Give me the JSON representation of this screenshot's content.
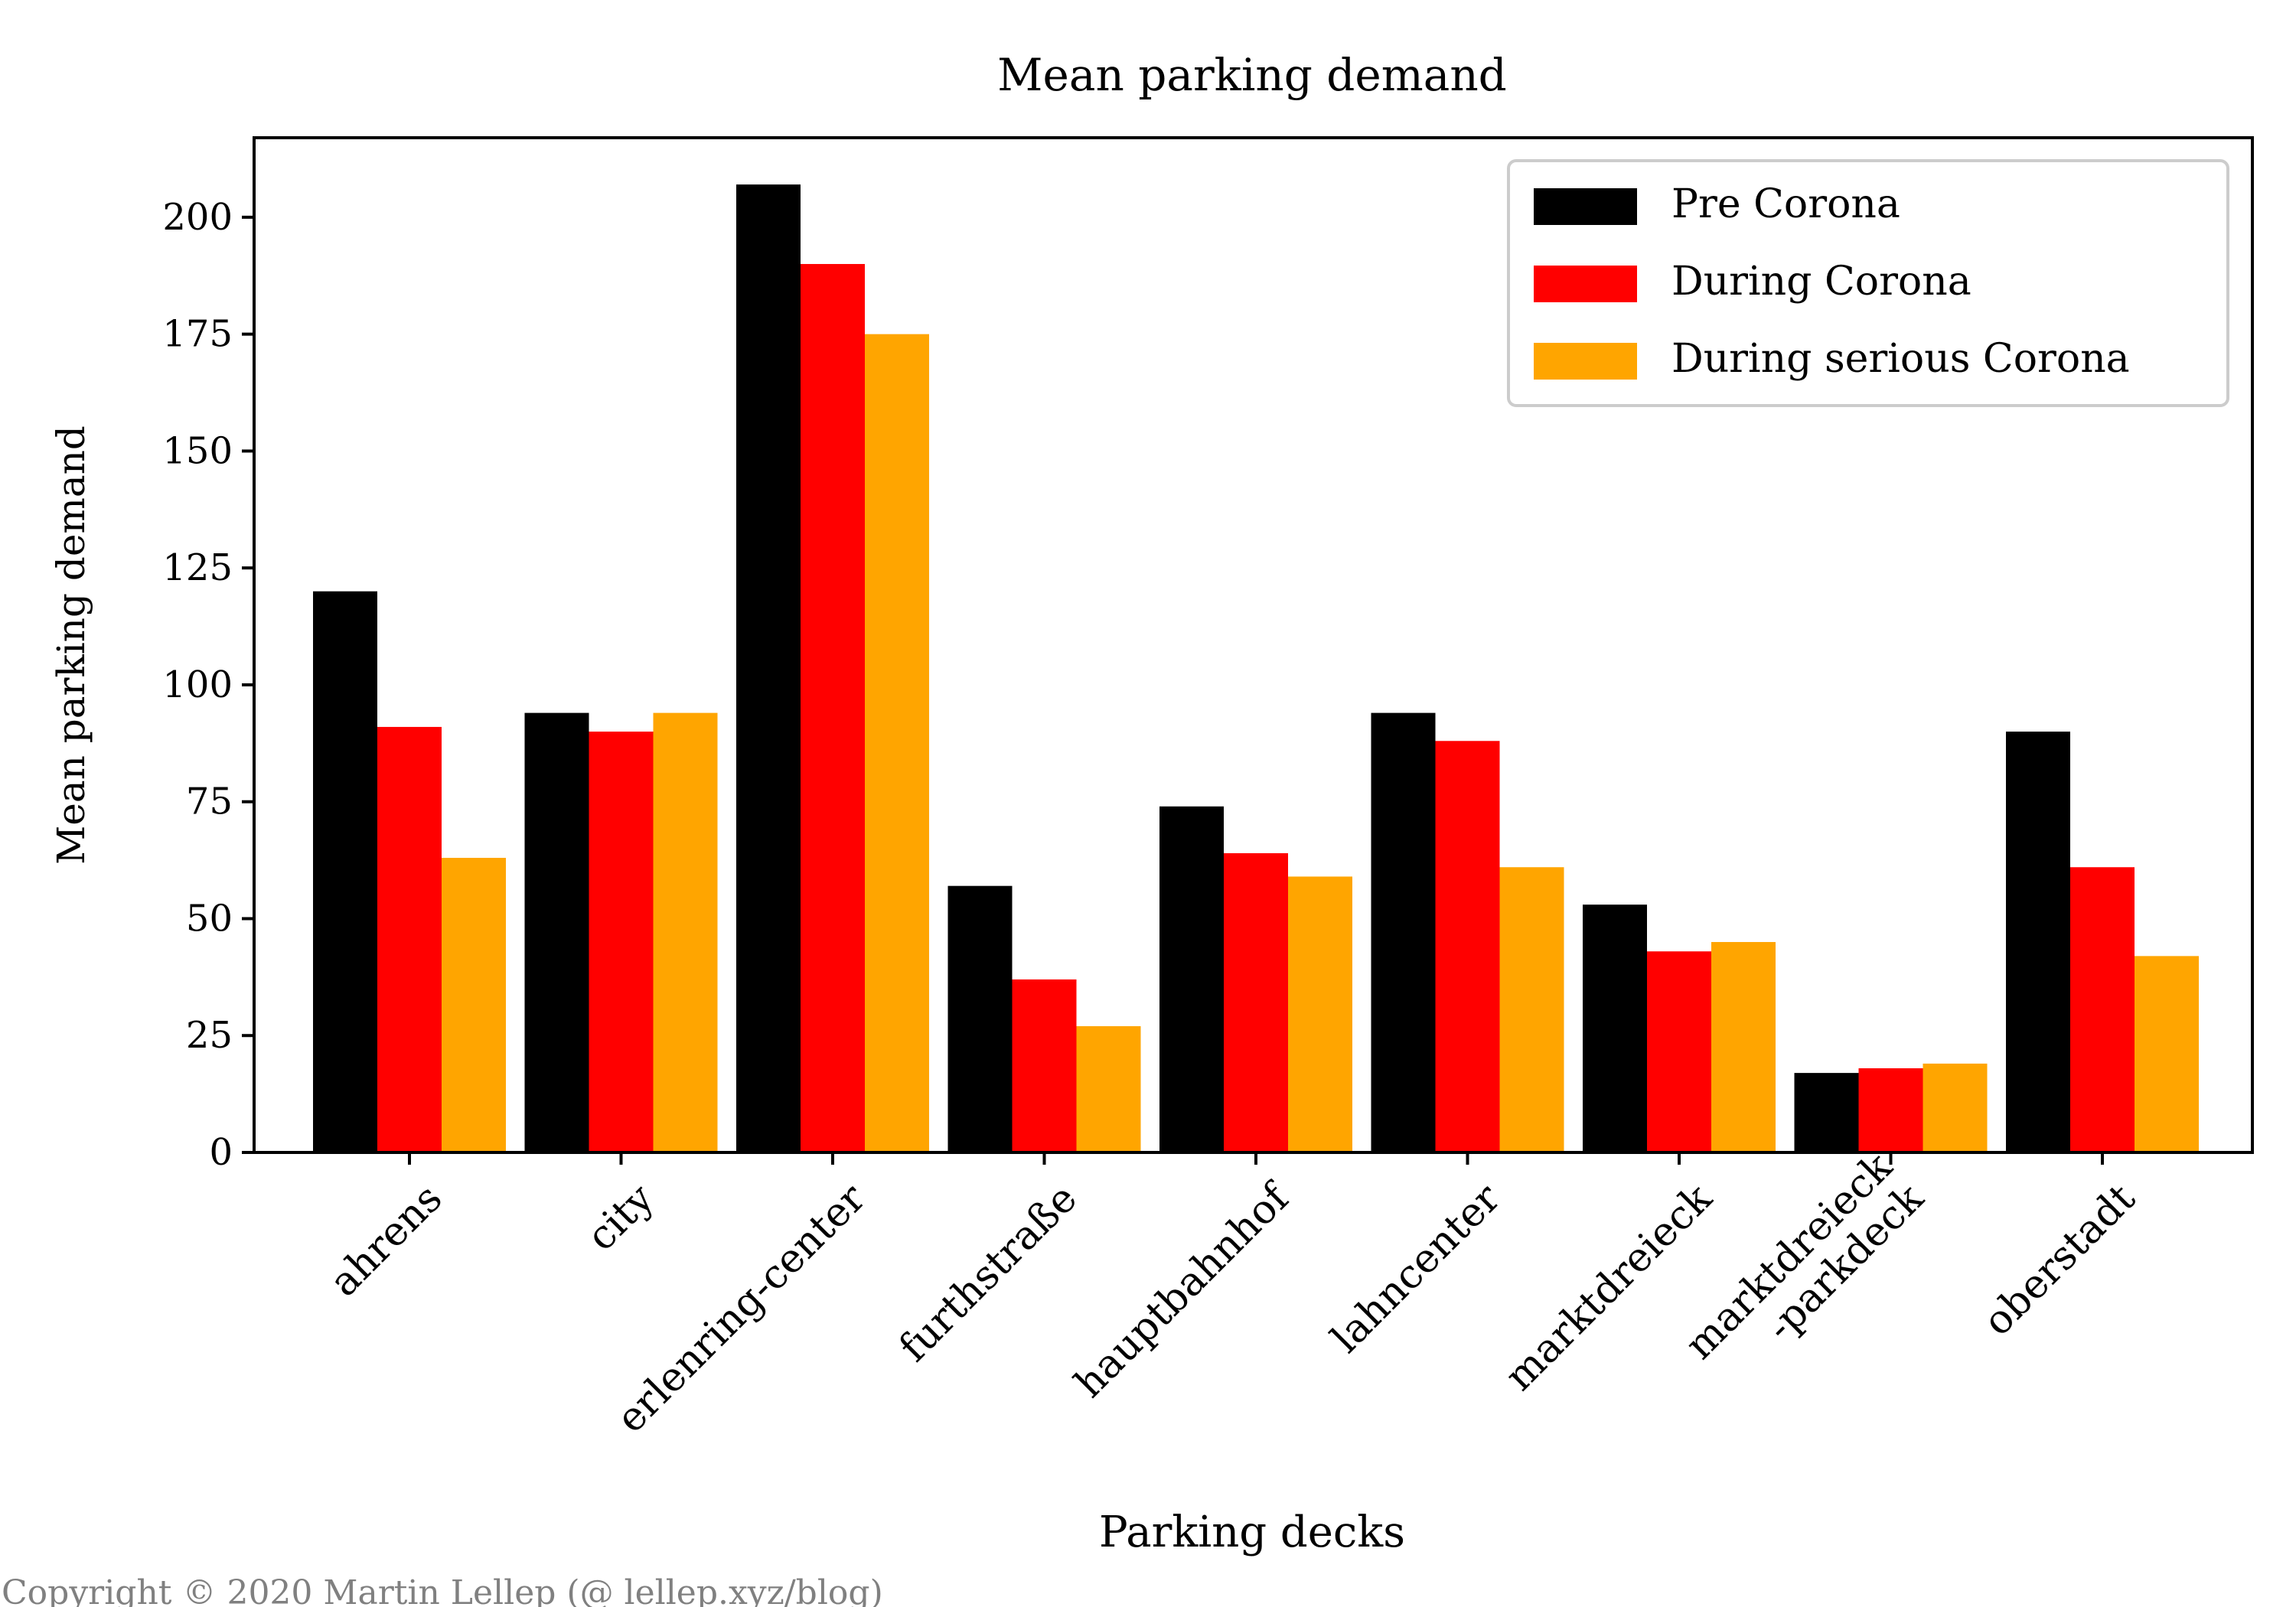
{
  "chart_data": {
    "type": "bar",
    "title": "Mean parking demand",
    "xlabel": "Parking decks",
    "ylabel": "Mean parking demand",
    "ylim": [
      0,
      217
    ],
    "yticks": [
      0,
      25,
      50,
      75,
      100,
      125,
      150,
      175,
      200
    ],
    "categories": [
      [
        "ahrens"
      ],
      [
        "city"
      ],
      [
        "erlenring-center"
      ],
      [
        "furthstraße"
      ],
      [
        "hauptbahnhof"
      ],
      [
        "lahncenter"
      ],
      [
        "marktdreieck"
      ],
      [
        "marktdreieck",
        "-parkdeck"
      ],
      [
        "oberstadt"
      ]
    ],
    "series": [
      {
        "name": "Pre Corona",
        "color": "#000000",
        "values": [
          120,
          94,
          207,
          57,
          74,
          94,
          53,
          17,
          90
        ]
      },
      {
        "name": "During Corona",
        "color": "#ff0000",
        "values": [
          91,
          90,
          190,
          37,
          64,
          88,
          43,
          18,
          61
        ]
      },
      {
        "name": "During serious Corona",
        "color": "#ffa500",
        "values": [
          63,
          94,
          175,
          27,
          59,
          61,
          45,
          19,
          42
        ]
      }
    ],
    "legend_position": "top-right",
    "grid": false
  },
  "footer": {
    "copyright": "Copyright © 2020 Martin Lellep (@ lellep.xyz/blog)"
  }
}
